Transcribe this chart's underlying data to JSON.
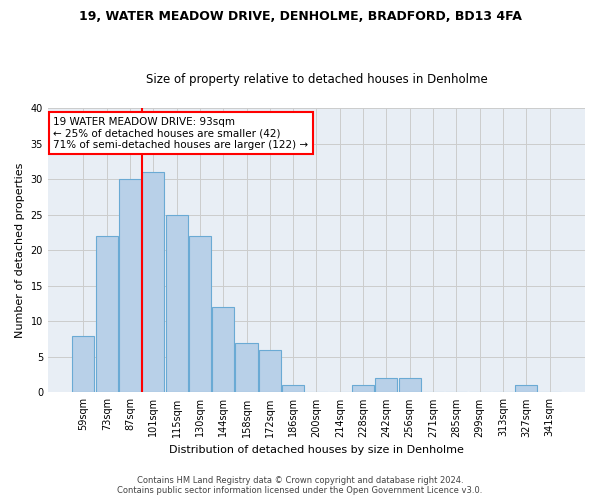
{
  "title1": "19, WATER MEADOW DRIVE, DENHOLME, BRADFORD, BD13 4FA",
  "title2": "Size of property relative to detached houses in Denholme",
  "xlabel": "Distribution of detached houses by size in Denholme",
  "ylabel": "Number of detached properties",
  "categories": [
    "59sqm",
    "73sqm",
    "87sqm",
    "101sqm",
    "115sqm",
    "130sqm",
    "144sqm",
    "158sqm",
    "172sqm",
    "186sqm",
    "200sqm",
    "214sqm",
    "228sqm",
    "242sqm",
    "256sqm",
    "271sqm",
    "285sqm",
    "299sqm",
    "313sqm",
    "327sqm",
    "341sqm"
  ],
  "values": [
    8,
    22,
    30,
    31,
    25,
    22,
    12,
    7,
    6,
    1,
    0,
    0,
    1,
    2,
    2,
    0,
    0,
    0,
    0,
    1,
    0
  ],
  "bar_color": "#b8d0e8",
  "bar_edge_color": "#6aaad4",
  "vline_color": "red",
  "vline_pos": 2.5,
  "annotation_line1": "19 WATER MEADOW DRIVE: 93sqm",
  "annotation_line2": "← 25% of detached houses are smaller (42)",
  "annotation_line3": "71% of semi-detached houses are larger (122) →",
  "annotation_box_color": "white",
  "annotation_box_edge_color": "red",
  "ylim": [
    0,
    40
  ],
  "yticks": [
    0,
    5,
    10,
    15,
    20,
    25,
    30,
    35,
    40
  ],
  "grid_color": "#cccccc",
  "background_color": "#e8eef5",
  "footer1": "Contains HM Land Registry data © Crown copyright and database right 2024.",
  "footer2": "Contains public sector information licensed under the Open Government Licence v3.0.",
  "title1_fontsize": 9,
  "title2_fontsize": 8.5,
  "ylabel_fontsize": 8,
  "xlabel_fontsize": 8,
  "tick_fontsize": 7,
  "annotation_fontsize": 7.5,
  "footer_fontsize": 6
}
